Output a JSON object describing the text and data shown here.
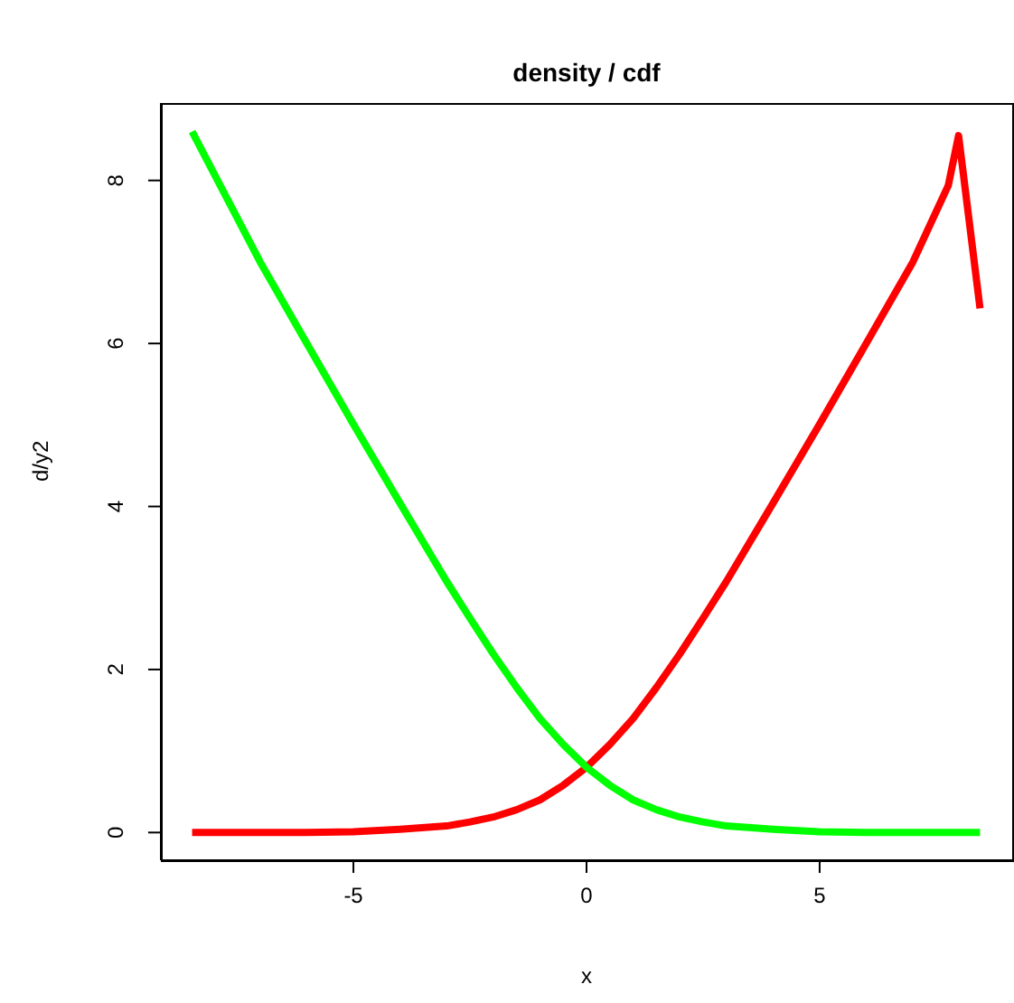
{
  "chart_data": {
    "type": "line",
    "title": "density / cdf",
    "xlabel": "x",
    "ylabel": "d/y2",
    "x": [
      -8.46,
      -7,
      -6,
      -5,
      -4,
      -3,
      -2.5,
      -2,
      -1.5,
      -1,
      -0.5,
      0,
      0.5,
      1,
      1.5,
      2,
      2.5,
      3,
      4,
      5,
      6,
      7,
      7.76,
      7.98,
      8.44
    ],
    "series": [
      {
        "color": "#ff0000",
        "values": [
          0,
          0,
          0,
          0.01,
          0.04,
          0.08,
          0.13,
          0.19,
          0.28,
          0.4,
          0.58,
          0.8,
          1.08,
          1.4,
          1.78,
          2.19,
          2.63,
          3.08,
          4.04,
          5.01,
          6,
          7,
          7.94,
          8.55,
          6.43
        ]
      },
      {
        "color": "#00ff00",
        "values": [
          8.6,
          7,
          6,
          5.01,
          4.04,
          3.08,
          2.63,
          2.19,
          1.78,
          1.4,
          1.08,
          0.8,
          0.58,
          0.4,
          0.28,
          0.19,
          0.13,
          0.08,
          0.04,
          0.01,
          0,
          0,
          0,
          0,
          0
        ]
      }
    ],
    "xlim": [
      -9.13,
      9.13
    ],
    "xticks": [
      -5,
      0,
      5
    ],
    "ylim": [
      -0.34,
      8.95
    ],
    "yticks": [
      0,
      2,
      4,
      6,
      8
    ],
    "marker": "none",
    "line_style": "solid"
  }
}
